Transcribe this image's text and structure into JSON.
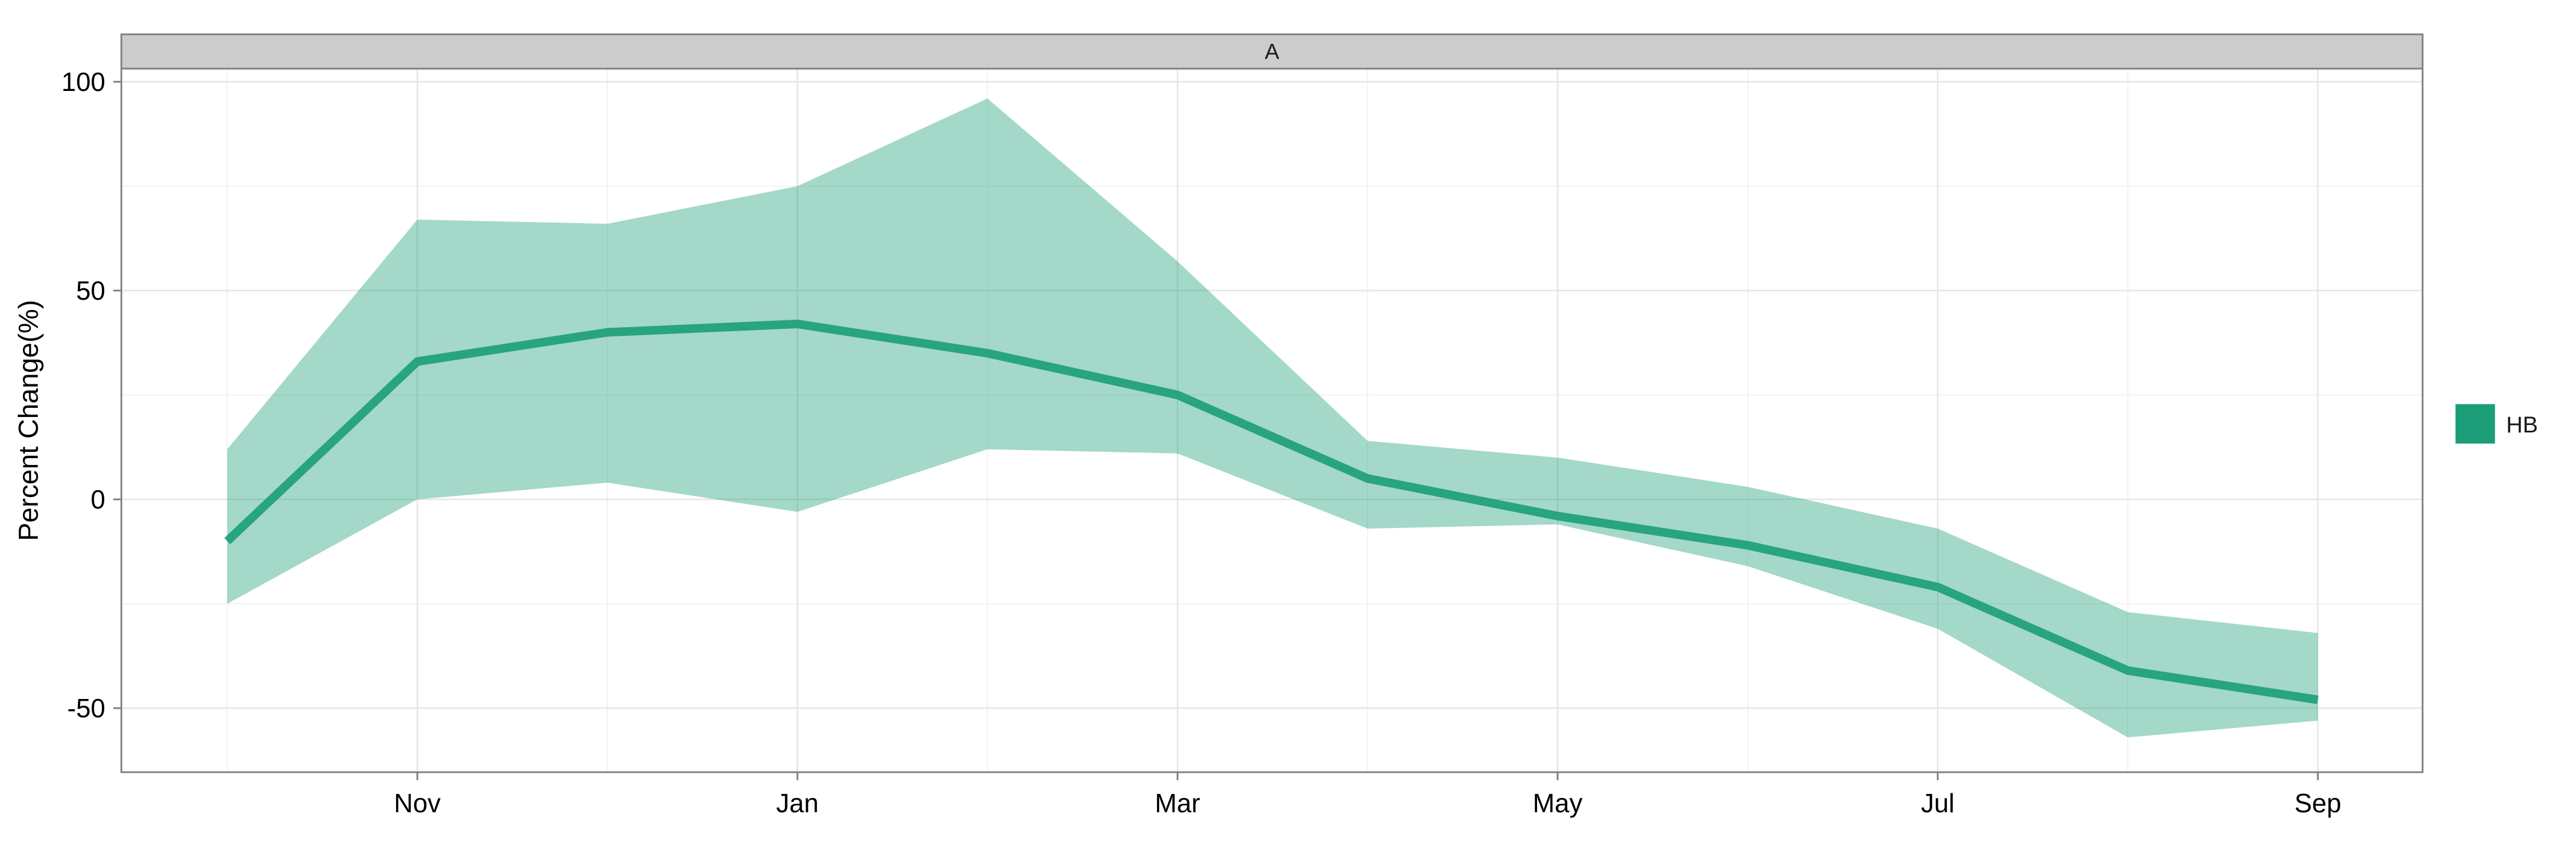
{
  "chart_data": {
    "type": "area",
    "facet_label": "A",
    "ylabel": "Percent Change(%)",
    "xlabel": "",
    "x": [
      "2013-10",
      "2013-11",
      "2013-12",
      "2014-01",
      "2014-02",
      "2014-03",
      "2014-04",
      "2014-05",
      "2014-06",
      "2014-07",
      "2014-08",
      "2014-09"
    ],
    "x_tick_labels": [
      {
        "x": "2013-11",
        "label": "Nov"
      },
      {
        "x": "2014-01",
        "label": "Jan"
      },
      {
        "x": "2014-03",
        "label": "Mar"
      },
      {
        "x": "2014-05",
        "label": "May"
      },
      {
        "x": "2014-07",
        "label": "Jul"
      },
      {
        "x": "2014-09",
        "label": "Sep"
      }
    ],
    "y_ticks": [
      -50,
      0,
      50,
      100
    ],
    "ylim": [
      -65,
      102
    ],
    "grid": true,
    "legend_position": "right",
    "series": [
      {
        "name": "HB",
        "color": "#1b9e77",
        "values": [
          -10,
          33,
          40,
          42,
          35,
          25,
          5,
          -4,
          -11,
          -21,
          -41,
          -48
        ],
        "lower": [
          -25,
          0,
          4,
          -3,
          12,
          11,
          -7,
          -6,
          -16,
          -31,
          -57,
          -53
        ],
        "upper": [
          12,
          67,
          66,
          75,
          96,
          57,
          14,
          10,
          3,
          -7,
          -27,
          -32
        ]
      }
    ]
  }
}
